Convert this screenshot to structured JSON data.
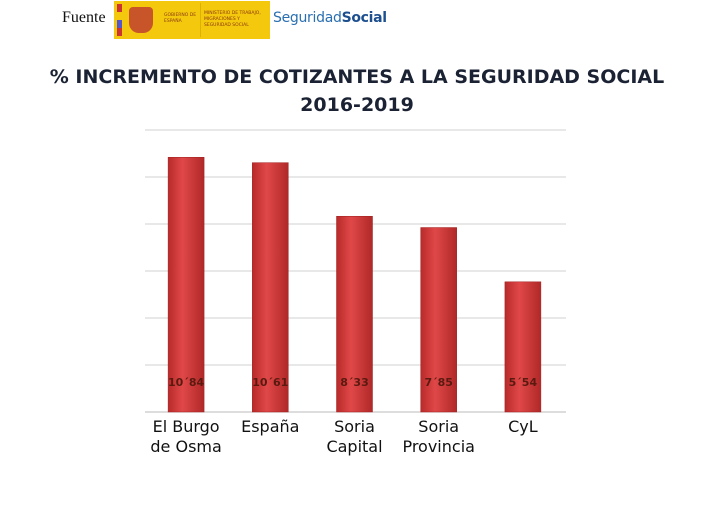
{
  "header": {
    "source_label": "Fuente",
    "logo_gobierno": "GOBIERNO DE ESPAÑA",
    "logo_ministerio": "MINISTERIO DE TRABAJO, MIGRACIONES Y SEGURIDAD SOCIAL",
    "logo_ss_part1": "Seguridad",
    "logo_ss_part2": "Social"
  },
  "chart_data": {
    "type": "bar",
    "title": "% INCREMENTO DE COTIZANTES A LA SEGURIDAD SOCIAL",
    "subtitle": "2016-2019",
    "categories": [
      [
        "El Burgo",
        "de Osma"
      ],
      [
        "España"
      ],
      [
        "Soria",
        "Capital"
      ],
      [
        "Soria",
        "Provincia"
      ],
      [
        "CyL"
      ]
    ],
    "values": [
      10.84,
      10.61,
      8.33,
      7.85,
      5.54
    ],
    "data_labels": [
      "10´84",
      "10´61",
      "8´33",
      "7´85",
      "5´54"
    ],
    "ylim": [
      0,
      12
    ],
    "grid": true,
    "bar_color": "#d63a3a",
    "label_color": "#5a1a10"
  }
}
